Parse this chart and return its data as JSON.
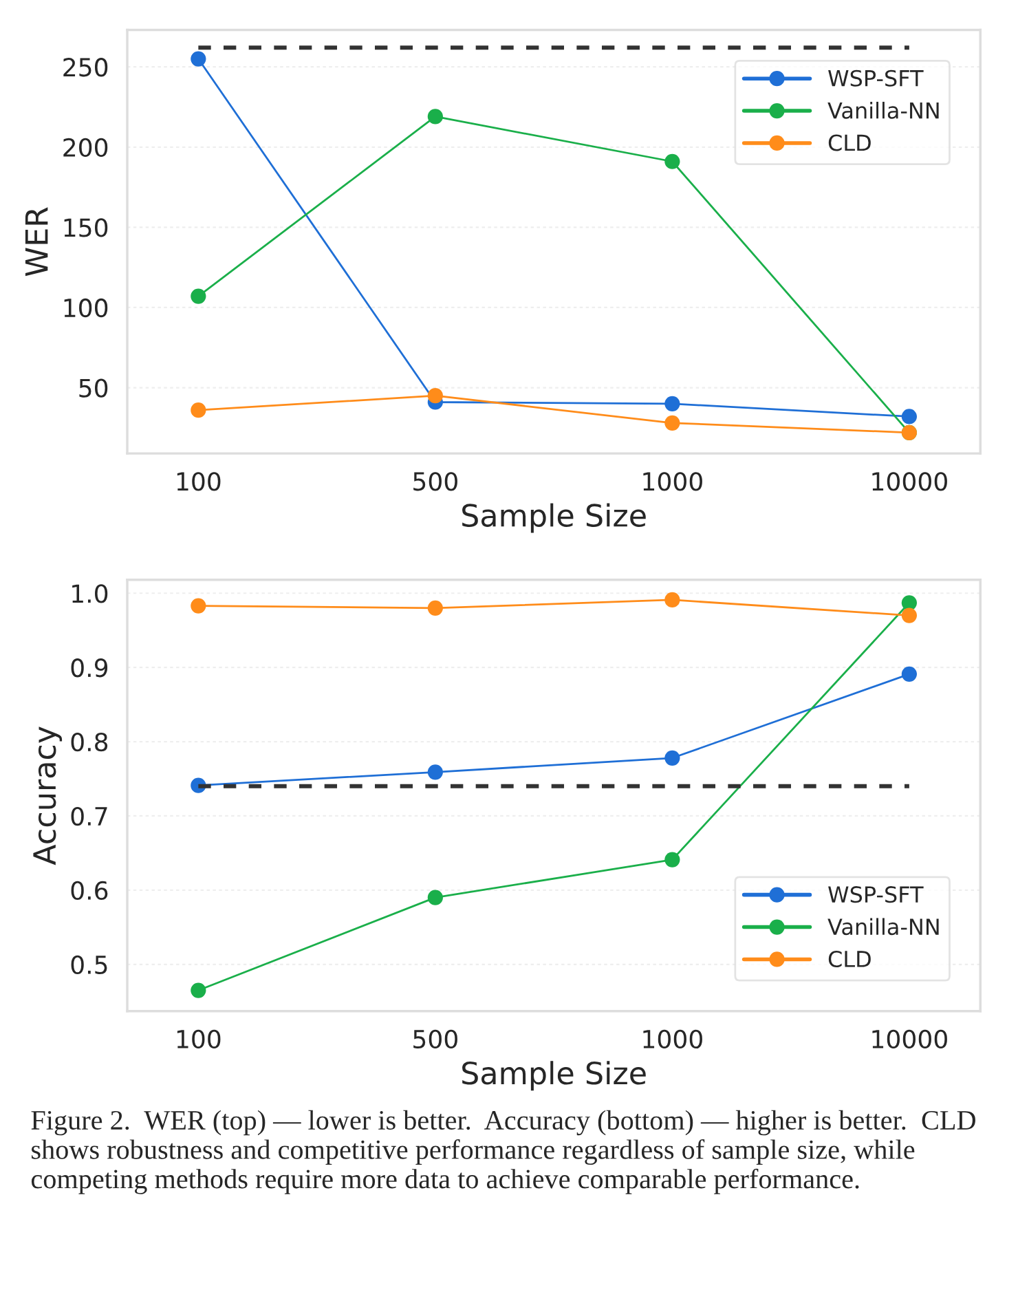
{
  "chart_data": [
    {
      "type": "line",
      "xlabel": "Sample Size",
      "ylabel": "WER",
      "categories": [
        "100",
        "500",
        "1000",
        "10000"
      ],
      "ylim": [
        9,
        273
      ],
      "yticks": [
        50,
        100,
        150,
        200,
        250
      ],
      "grid": "y",
      "legend": "top right",
      "marker": "circle",
      "series": [
        {
          "name": "WSP-SFT",
          "color": "#1f6fd6",
          "values": [
            255,
            41,
            40,
            32
          ]
        },
        {
          "name": "Vanilla-NN",
          "color": "#1aaf4a",
          "values": [
            107,
            219,
            191,
            22
          ]
        },
        {
          "name": "CLD",
          "color": "#ff8c1a",
          "values": [
            36,
            45,
            28,
            22
          ]
        },
        {
          "color": "#333333",
          "values": [
            262,
            262,
            262,
            262
          ],
          "line_style": "dashed",
          "marker": "none"
        }
      ]
    },
    {
      "type": "line",
      "xlabel": "Sample Size",
      "ylabel": "Accuracy",
      "categories": [
        "100",
        "500",
        "1000",
        "10000"
      ],
      "ylim": [
        0.437,
        1.018
      ],
      "yticks": [
        {
          "value": 0.5,
          "label": "0.5"
        },
        {
          "value": 0.6,
          "label": "0.6"
        },
        {
          "value": 0.7,
          "label": "0.7"
        },
        {
          "value": 0.8,
          "label": "0.8"
        },
        {
          "value": 0.9,
          "label": "0.9"
        },
        {
          "value": 1.0,
          "label": "1.0"
        }
      ],
      "grid": "y",
      "legend": "bottom right",
      "marker": "circle",
      "series": [
        {
          "name": "WSP-SFT",
          "color": "#1f6fd6",
          "values": [
            0.741,
            0.759,
            0.778,
            0.891
          ]
        },
        {
          "name": "Vanilla-NN",
          "color": "#1aaf4a",
          "values": [
            0.465,
            0.59,
            0.641,
            0.987
          ]
        },
        {
          "name": "CLD",
          "color": "#ff8c1a",
          "values": [
            0.983,
            0.98,
            0.991,
            0.97
          ]
        },
        {
          "color": "#333333",
          "values": [
            0.74,
            0.74,
            0.74,
            0.74
          ],
          "line_style": "dashed",
          "marker": "none"
        }
      ],
      "annotations": [
        "Figure 2.  WER (top) — lower is better.  Accuracy (bottom) — higher is better.  CLD shows robustness and competitive performance regardless of sample size, while competing methods require more data to achieve comparable performance."
      ]
    }
  ]
}
